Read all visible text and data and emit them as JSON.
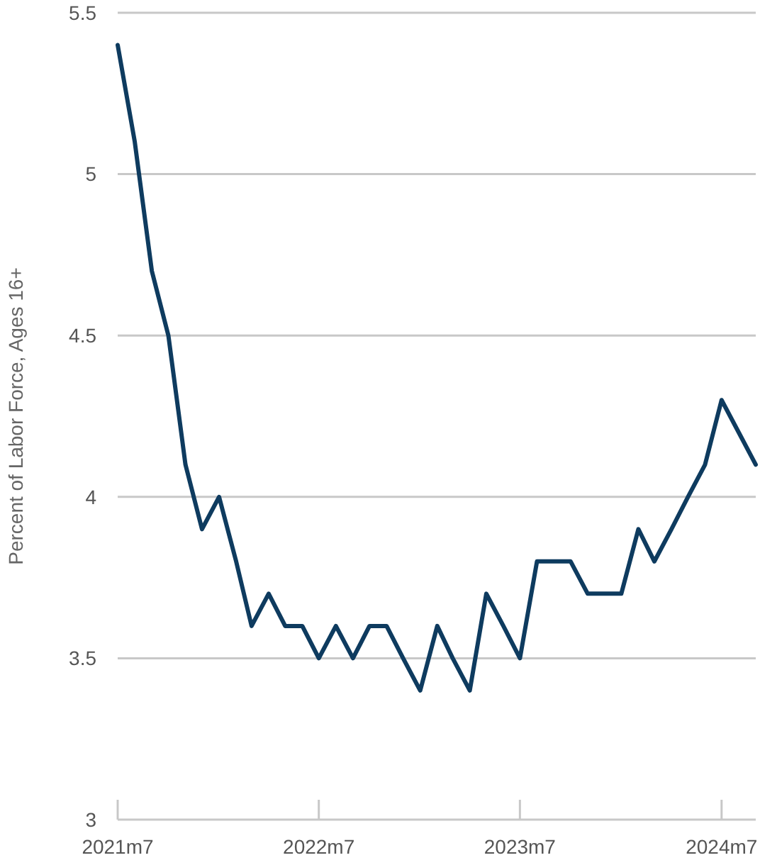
{
  "chart_data": {
    "type": "line",
    "ylabel": "Percent of Labor Force, Ages 16+",
    "x": [
      "2021-07",
      "2021-08",
      "2021-09",
      "2021-10",
      "2021-11",
      "2021-12",
      "2022-01",
      "2022-02",
      "2022-03",
      "2022-04",
      "2022-05",
      "2022-06",
      "2022-07",
      "2022-08",
      "2022-09",
      "2022-10",
      "2022-11",
      "2022-12",
      "2023-01",
      "2023-02",
      "2023-03",
      "2023-04",
      "2023-05",
      "2023-06",
      "2023-07",
      "2023-08",
      "2023-09",
      "2023-10",
      "2023-11",
      "2023-12",
      "2024-01",
      "2024-02",
      "2024-03",
      "2024-04",
      "2024-05",
      "2024-06",
      "2024-07",
      "2024-08",
      "2024-09"
    ],
    "series": [
      {
        "color": "#0e3b5f",
        "values": [
          5.4,
          5.1,
          4.7,
          4.5,
          4.1,
          3.9,
          4.0,
          3.8,
          3.6,
          3.7,
          3.6,
          3.6,
          3.5,
          3.6,
          3.5,
          3.6,
          3.6,
          3.5,
          3.4,
          3.6,
          3.5,
          3.4,
          3.7,
          3.6,
          3.5,
          3.8,
          3.8,
          3.8,
          3.7,
          3.7,
          3.7,
          3.9,
          3.8,
          3.9,
          4.0,
          4.1,
          4.3,
          4.2,
          4.1
        ]
      }
    ],
    "xlim": [
      "2021-07",
      "2024-09"
    ],
    "xticks": [
      {
        "value": "2021-07",
        "label": "2021m7"
      },
      {
        "value": "2022-07",
        "label": "2022m7"
      },
      {
        "value": "2023-07",
        "label": "2023m7"
      },
      {
        "value": "2024-07",
        "label": "2024m7"
      }
    ],
    "ylim": [
      3,
      5.5
    ],
    "yticks": [
      3,
      3.5,
      4,
      4.5,
      5,
      5.5
    ],
    "grid": "y",
    "marker": "none",
    "line_style": "solid"
  }
}
